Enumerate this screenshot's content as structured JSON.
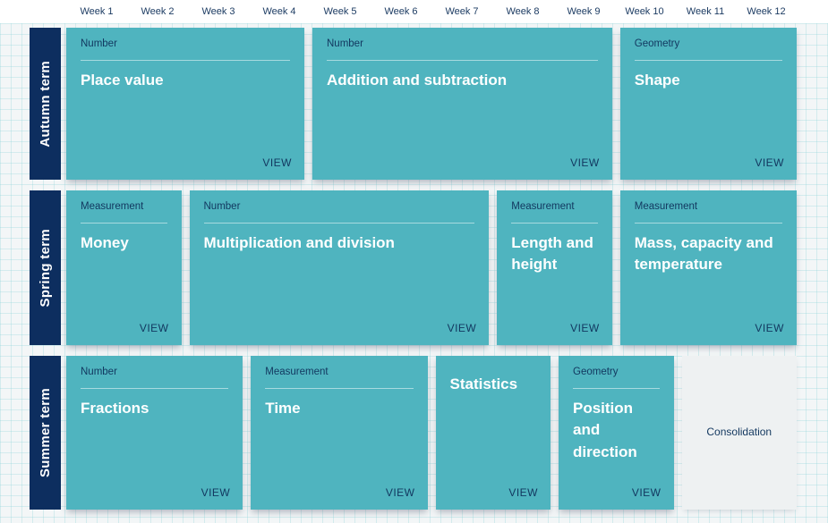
{
  "weeks": [
    "Week 1",
    "Week 2",
    "Week 3",
    "Week 4",
    "Week 5",
    "Week 6",
    "Week 7",
    "Week 8",
    "Week 9",
    "Week 10",
    "Week 11",
    "Week 12"
  ],
  "terms": [
    {
      "label": "Autumn term",
      "cards": [
        {
          "category": "Number",
          "title": "Place value",
          "action": "VIEW",
          "weeks": 4
        },
        {
          "category": "Number",
          "title": "Addition and subtraction",
          "action": "VIEW",
          "weeks": 5
        },
        {
          "category": "Geometry",
          "title": "Shape",
          "action": "VIEW",
          "weeks": 3
        }
      ]
    },
    {
      "label": "Spring term",
      "cards": [
        {
          "category": "Measurement",
          "title": "Money",
          "action": "VIEW",
          "weeks": 2
        },
        {
          "category": "Number",
          "title": "Multiplication and division",
          "action": "VIEW",
          "weeks": 5
        },
        {
          "category": "Measurement",
          "title": "Length and height",
          "action": "VIEW",
          "weeks": 2
        },
        {
          "category": "Measurement",
          "title": "Mass, capacity and temperature",
          "action": "VIEW",
          "weeks": 3
        }
      ]
    },
    {
      "label": "Summer term",
      "cards": [
        {
          "category": "Number",
          "title": "Fractions",
          "action": "VIEW",
          "weeks": 3
        },
        {
          "category": "Measurement",
          "title": "Time",
          "action": "VIEW",
          "weeks": 3
        },
        {
          "category": "",
          "title": "Statistics",
          "action": "VIEW",
          "weeks": 2
        },
        {
          "category": "Geometry",
          "title": "Position and direction",
          "action": "VIEW",
          "weeks": 2
        },
        {
          "category": "",
          "title": "Consolidation",
          "action": "",
          "weeks": 2,
          "type": "consolidation"
        }
      ]
    }
  ],
  "colors": {
    "card_teal": "#4fb4bf",
    "term_rail_navy": "#0d2e5f",
    "card_text_navy": "#12375f",
    "title_white": "#ffffff",
    "week_label_navy": "#1d3c63",
    "consolidation_bg": "#eef1f2",
    "board_bg": "#f3f6f7",
    "grid_line": "rgba(130,205,213,0.28)"
  }
}
